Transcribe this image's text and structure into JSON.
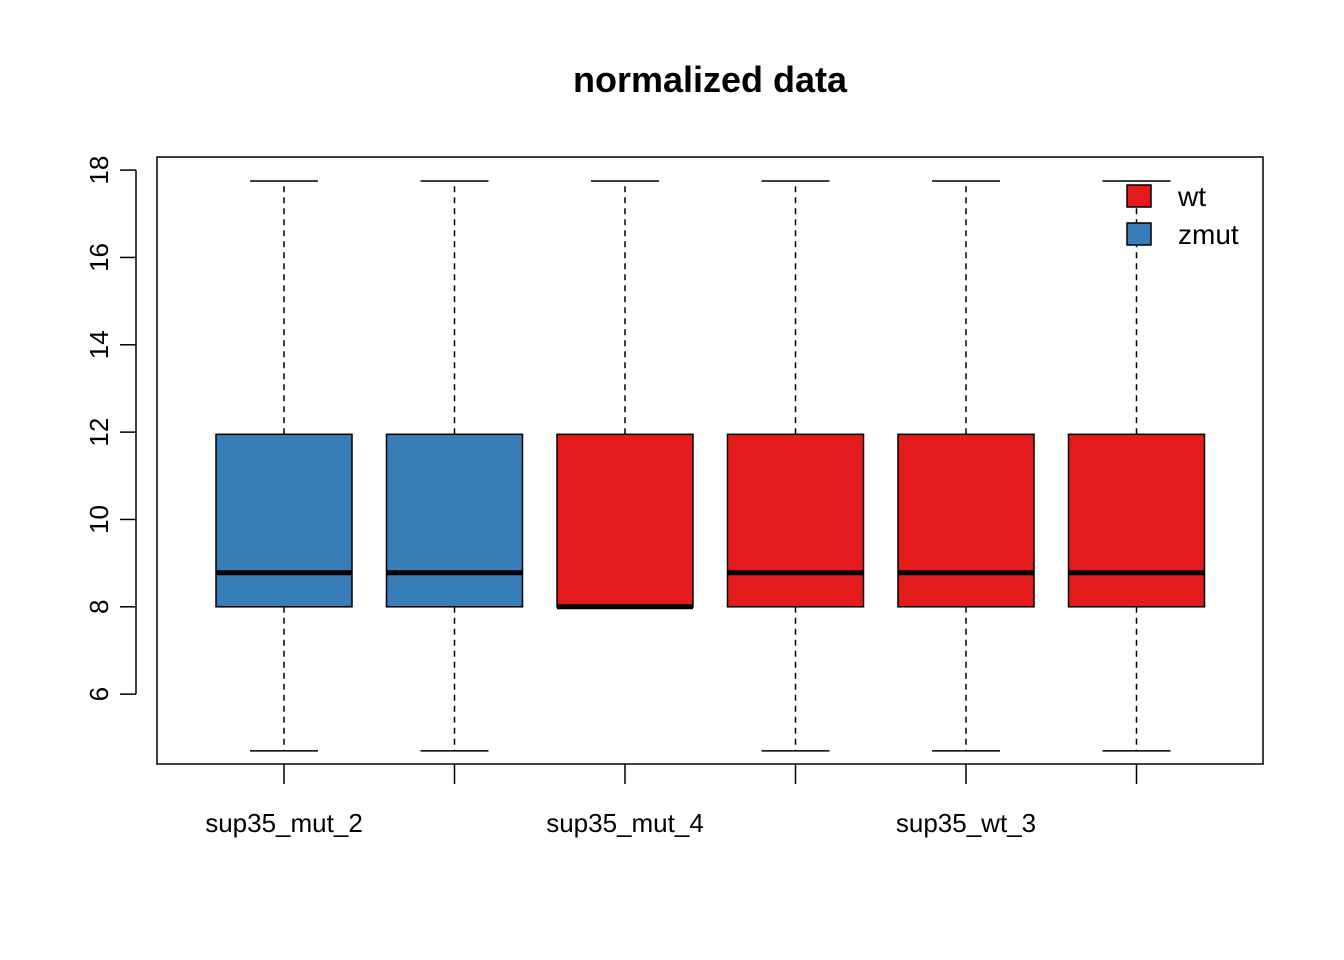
{
  "chart_data": {
    "type": "boxplot",
    "title": "normalized data",
    "xlabel": "",
    "ylabel": "",
    "ylim": [
      4.4,
      18.3
    ],
    "y_ticks": [
      6,
      8,
      10,
      12,
      14,
      16,
      18
    ],
    "categories": [
      "sup35_mut_2",
      "",
      "sup35_mut_4",
      "",
      "sup35_wt_3",
      ""
    ],
    "boxes": [
      {
        "min": 4.7,
        "q1": 8.0,
        "median": 8.78,
        "q3": 11.95,
        "max": 17.75,
        "group": "zmut"
      },
      {
        "min": 4.7,
        "q1": 8.0,
        "median": 8.78,
        "q3": 11.95,
        "max": 17.75,
        "group": "zmut"
      },
      {
        "min": 8.0,
        "q1": 8.0,
        "median": 8.0,
        "q3": 11.95,
        "max": 17.75,
        "group": "wt"
      },
      {
        "min": 4.7,
        "q1": 8.0,
        "median": 8.78,
        "q3": 11.95,
        "max": 17.75,
        "group": "wt"
      },
      {
        "min": 4.7,
        "q1": 8.0,
        "median": 8.78,
        "q3": 11.95,
        "max": 17.75,
        "group": "wt"
      },
      {
        "min": 4.7,
        "q1": 8.0,
        "median": 8.78,
        "q3": 11.95,
        "max": 17.75,
        "group": "wt"
      }
    ],
    "legend": {
      "position": "top-right",
      "entries": [
        {
          "name": "wt",
          "color": "#E41A1C"
        },
        {
          "name": "zmut",
          "color": "#377EB8"
        }
      ]
    },
    "colors": {
      "wt": "#E41A1C",
      "zmut": "#377EB8"
    },
    "grid": false
  }
}
